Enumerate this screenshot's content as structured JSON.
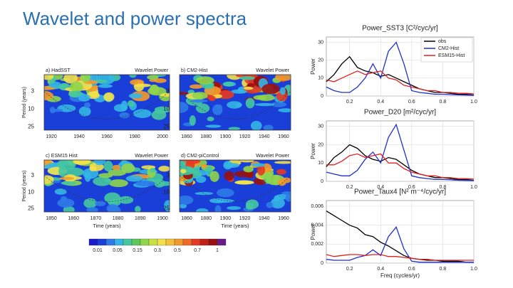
{
  "title": "Wavelet and power spectra",
  "wavelet_figure": {
    "panels": [
      {
        "label": "a) HadSST",
        "power_label": "Wavelet Power",
        "xticks": [
          "1920",
          "1940",
          "1960",
          "1980",
          "2000"
        ]
      },
      {
        "label": "b) CM2-Hist",
        "power_label": "Wavelet Power",
        "xticks": [
          "1860",
          "1880",
          "1900",
          "1920",
          "1940",
          "1960"
        ]
      },
      {
        "label": "c) ESM15 Hist",
        "power_label": "Wavelet Power",
        "xticks": [
          "1850",
          "1860",
          "1870",
          "1880",
          "1890",
          "1900"
        ]
      },
      {
        "label": "d) CM2-piControl",
        "power_label": "Wavelet Power",
        "xticks": [
          "1860",
          "1880",
          "1900",
          "1920",
          "1940",
          "1960"
        ]
      }
    ],
    "ylabel": "Period (years)",
    "yticks": [
      "3",
      "10",
      "25"
    ],
    "xlabel": "Time (years)",
    "colorbar_labels": [
      "0.01",
      "0.05",
      "0.15",
      "0.3",
      "0.5",
      "0.7",
      "1"
    ]
  },
  "chart_data": [
    {
      "type": "line",
      "title": "Power_SST3 [C²/cyc/yr]",
      "ylabel": "Power",
      "x": [
        0.05,
        0.1,
        0.15,
        0.2,
        0.25,
        0.3,
        0.35,
        0.4,
        0.45,
        0.5,
        0.55,
        0.6,
        0.65,
        0.7,
        0.75,
        0.8,
        0.85,
        0.9,
        0.95,
        1.0
      ],
      "series": [
        {
          "name": "obs",
          "color": "#000000",
          "values": [
            8,
            12,
            18,
            22,
            16,
            14,
            13,
            11,
            12,
            10,
            8,
            6,
            4,
            3,
            2,
            2,
            1.5,
            1,
            1,
            0.5
          ]
        },
        {
          "name": "CM2-Hist",
          "color": "#1f2fd0",
          "values": [
            5,
            3,
            2,
            2,
            5,
            10,
            18,
            10,
            25,
            30,
            18,
            3,
            2,
            1.5,
            1,
            1,
            0.8,
            0.6,
            0.5,
            0.4
          ]
        },
        {
          "name": "ESM15-Hist",
          "color": "#e02020",
          "values": [
            9,
            8,
            10,
            12,
            14,
            12,
            13,
            14,
            10,
            9,
            6,
            5,
            4,
            3,
            3,
            2,
            2,
            1.5,
            1.5,
            1.2
          ]
        }
      ],
      "xlim": [
        0.05,
        1.0
      ],
      "ylim": [
        0,
        33
      ],
      "xticks": [
        0.2,
        0.4,
        0.6,
        0.8,
        {
          "value": 1,
          "label": "1.0"
        }
      ],
      "yticks": [
        0,
        10,
        20,
        30
      ],
      "grid": true,
      "legend": "top-right"
    },
    {
      "type": "line",
      "title": "Power_D20 [m²/cyc/yr]",
      "ylabel": "Power",
      "x": [
        0.05,
        0.1,
        0.15,
        0.2,
        0.25,
        0.3,
        0.35,
        0.4,
        0.45,
        0.5,
        0.55,
        0.6,
        0.65,
        0.7,
        0.75,
        0.8,
        0.85,
        0.9,
        0.95,
        1.0
      ],
      "series": [
        {
          "name": "obs",
          "color": "#000000",
          "values": [
            8,
            13,
            16,
            20,
            18,
            14,
            12,
            11,
            13,
            12,
            9,
            6,
            4,
            3,
            2,
            2,
            1.5,
            1,
            1,
            0.5
          ]
        },
        {
          "name": "CM2-Hist",
          "color": "#1f2fd0",
          "values": [
            5,
            4,
            3,
            3,
            6,
            12,
            16,
            10,
            24,
            31,
            17,
            3,
            2,
            1.5,
            1,
            1,
            0.8,
            0.6,
            0.5,
            0.4
          ]
        },
        {
          "name": "ESM15-Hist",
          "color": "#e02020",
          "values": [
            9,
            9,
            11,
            14,
            15,
            13,
            14,
            15,
            10,
            10,
            7,
            5,
            4,
            3,
            3,
            2,
            2,
            1.5,
            1.5,
            1.2
          ]
        }
      ],
      "xlim": [
        0.05,
        1.0
      ],
      "ylim": [
        0,
        33
      ],
      "xticks": [
        0.2,
        0.4,
        0.6,
        0.8,
        {
          "value": 1,
          "label": "1.0"
        }
      ],
      "yticks": [
        0,
        10,
        20,
        30
      ],
      "grid": true
    },
    {
      "type": "line",
      "title": "Power_Taux4 [N² m⁻⁴/cyc/yr]",
      "ylabel": "Power",
      "xlabel": "Freq (cycles/yr)",
      "x": [
        0.05,
        0.1,
        0.15,
        0.2,
        0.25,
        0.3,
        0.35,
        0.4,
        0.45,
        0.5,
        0.55,
        0.6,
        0.65,
        0.7,
        0.75,
        0.8,
        0.85,
        0.9,
        0.95,
        1.0
      ],
      "series": [
        {
          "name": "obs",
          "color": "#000000",
          "values": [
            0.0055,
            0.005,
            0.0045,
            0.004,
            0.0037,
            0.003,
            0.0028,
            0.0022,
            0.0018,
            0.0013,
            0.0008,
            0.0005,
            0.0004,
            0.0003,
            0.0003,
            0.0002,
            0.0002,
            0.0002,
            0.0001,
            0.0001
          ]
        },
        {
          "name": "CM2-Hist",
          "color": "#1f2fd0",
          "values": [
            0.0004,
            0.0003,
            0.0003,
            0.0003,
            0.0006,
            0.0008,
            0.0014,
            0.0008,
            0.0028,
            0.0038,
            0.0015,
            0.0002,
            0.0001,
            0.0001,
            0.0001,
            0.0001,
            0.0001,
            0.0001,
            0.0001,
            0.0001
          ]
        },
        {
          "name": "ESM15-Hist",
          "color": "#e02020",
          "values": [
            0.0009,
            0.0007,
            0.0008,
            0.0009,
            0.0009,
            0.0008,
            0.0009,
            0.0009,
            0.0007,
            0.0007,
            0.0006,
            0.0005,
            0.0004,
            0.0004,
            0.0003,
            0.0003,
            0.0003,
            0.0003,
            0.0003,
            0.0003
          ]
        }
      ],
      "xlim": [
        0.05,
        1.0
      ],
      "ylim": [
        0,
        0.0066
      ],
      "xticks": [
        0.2,
        0.4,
        0.6,
        0.8,
        {
          "value": 1,
          "label": "1.0"
        }
      ],
      "yticks": [
        0,
        0.002,
        0.004,
        0.006
      ],
      "grid": true
    }
  ]
}
